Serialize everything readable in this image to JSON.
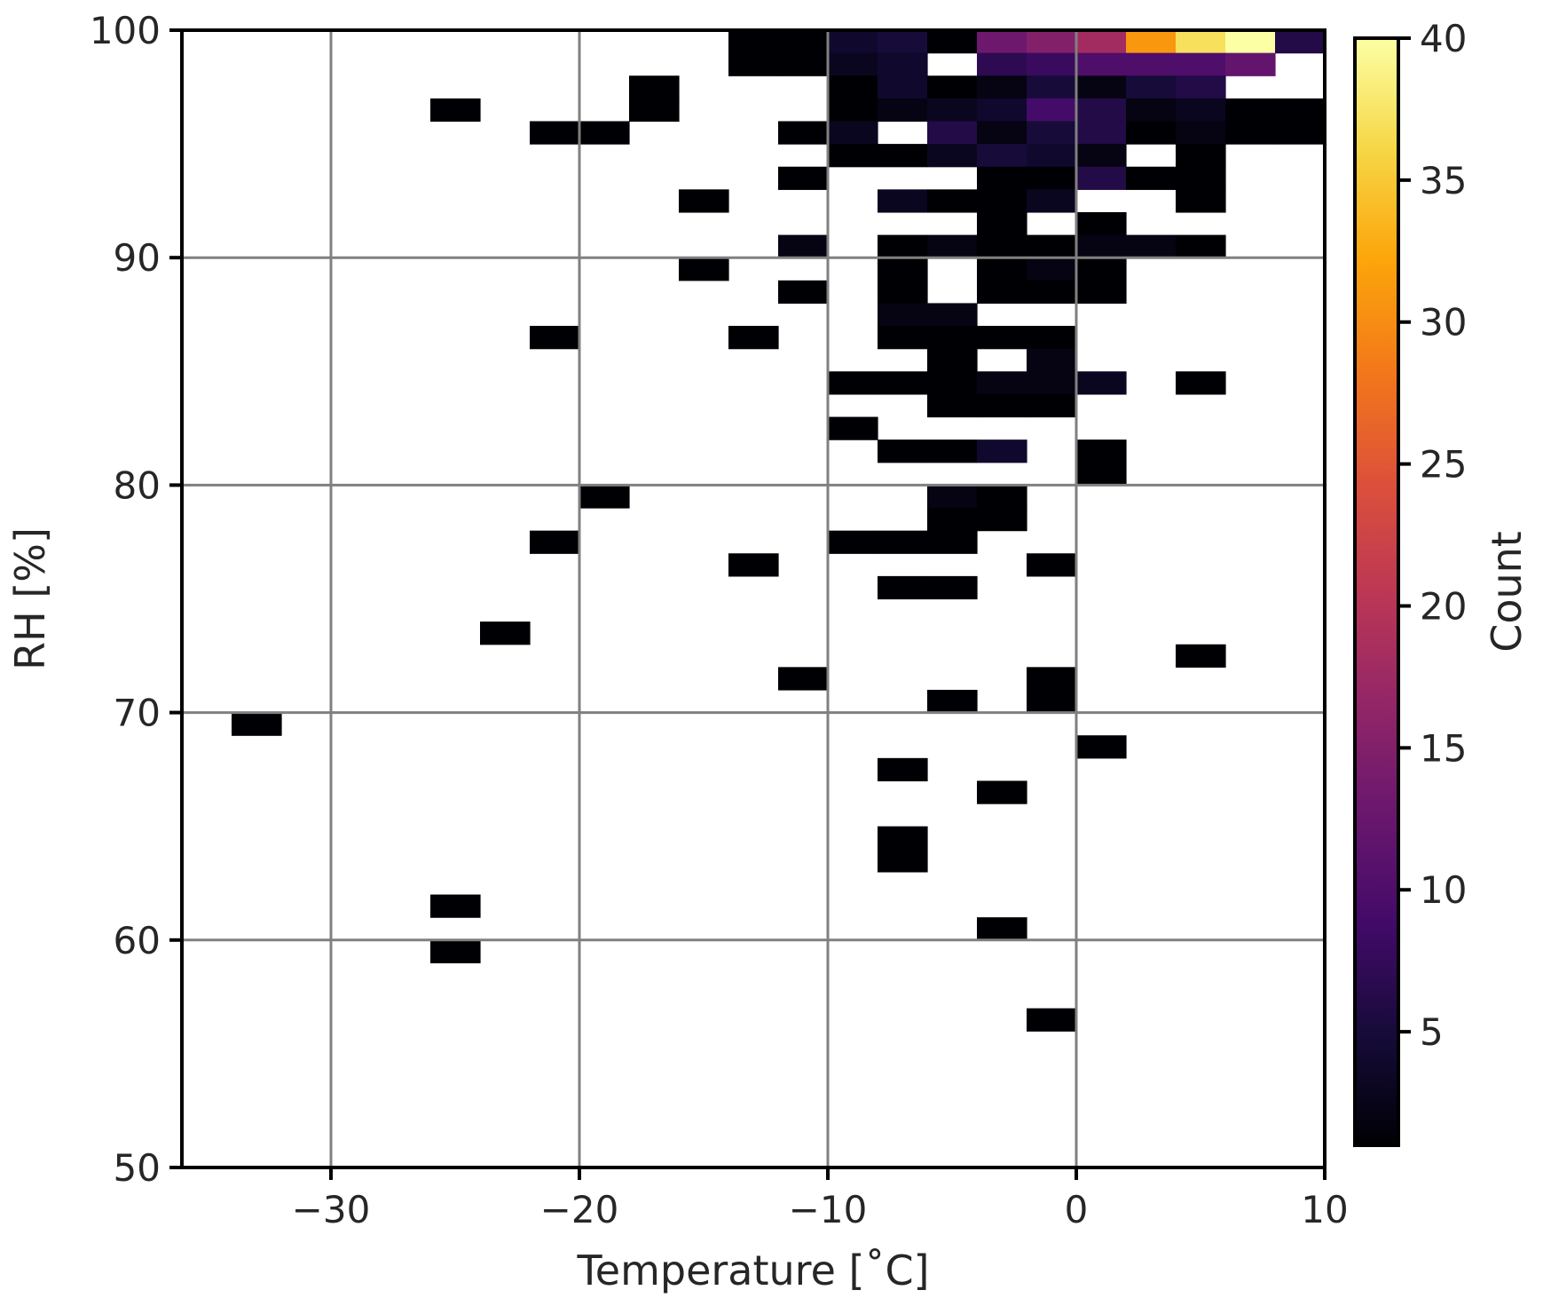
{
  "chart_data": {
    "type": "heatmap",
    "xlabel": "Temperature [˚C]",
    "ylabel": "RH [%]",
    "colorbar_label": "Count",
    "colormap": "inferno",
    "xlim": [
      -36,
      10
    ],
    "ylim": [
      50,
      100
    ],
    "x_bin_width": 2,
    "y_bin_width": 1,
    "xticks": [
      -30,
      -20,
      -10,
      0,
      10
    ],
    "xtick_labels": [
      "−30",
      "−20",
      "−10",
      "0",
      "10"
    ],
    "yticks": [
      50,
      60,
      70,
      80,
      90,
      100
    ],
    "ytick_labels": [
      "50",
      "60",
      "70",
      "80",
      "90",
      "100"
    ],
    "color_range": [
      1,
      40
    ],
    "colorbar_ticks": [
      5,
      10,
      15,
      20,
      25,
      30,
      35,
      40
    ],
    "colorbar_tick_labels": [
      "5",
      "10",
      "15",
      "20",
      "25",
      "30",
      "35",
      "40"
    ],
    "grid": true,
    "cells": [
      [
        -14,
        99,
        1
      ],
      [
        -12,
        99,
        1
      ],
      [
        -10,
        99,
        4
      ],
      [
        -8,
        99,
        5
      ],
      [
        -6,
        99,
        1
      ],
      [
        -4,
        99,
        13
      ],
      [
        -2,
        99,
        15
      ],
      [
        0,
        99,
        18
      ],
      [
        2,
        99,
        31
      ],
      [
        4,
        99,
        37
      ],
      [
        6,
        99,
        40
      ],
      [
        8,
        99,
        6
      ],
      [
        -14,
        98,
        1
      ],
      [
        -12,
        98,
        1
      ],
      [
        -10,
        98,
        3
      ],
      [
        -8,
        98,
        4
      ],
      [
        -4,
        98,
        7
      ],
      [
        -2,
        98,
        8
      ],
      [
        0,
        98,
        10
      ],
      [
        2,
        98,
        10
      ],
      [
        4,
        98,
        10
      ],
      [
        6,
        98,
        12
      ],
      [
        -18,
        97,
        1
      ],
      [
        -10,
        97,
        1
      ],
      [
        -8,
        97,
        4
      ],
      [
        -6,
        97,
        1
      ],
      [
        -4,
        97,
        2
      ],
      [
        -2,
        97,
        5
      ],
      [
        0,
        97,
        2
      ],
      [
        2,
        97,
        5
      ],
      [
        4,
        97,
        6
      ],
      [
        -26,
        96,
        1
      ],
      [
        -18,
        96,
        1
      ],
      [
        -10,
        96,
        1
      ],
      [
        -8,
        96,
        2
      ],
      [
        -6,
        96,
        3
      ],
      [
        -4,
        96,
        4
      ],
      [
        -2,
        96,
        9
      ],
      [
        0,
        96,
        6
      ],
      [
        2,
        96,
        2
      ],
      [
        4,
        96,
        3
      ],
      [
        6,
        96,
        1
      ],
      [
        8,
        96,
        1
      ],
      [
        -22,
        95,
        1
      ],
      [
        -20,
        95,
        1
      ],
      [
        -12,
        95,
        1
      ],
      [
        -10,
        95,
        3
      ],
      [
        -6,
        95,
        6
      ],
      [
        -4,
        95,
        2
      ],
      [
        -2,
        95,
        5
      ],
      [
        0,
        95,
        6
      ],
      [
        2,
        95,
        1
      ],
      [
        4,
        95,
        2
      ],
      [
        6,
        95,
        1
      ],
      [
        8,
        95,
        1
      ],
      [
        -10,
        94,
        1
      ],
      [
        -8,
        94,
        1
      ],
      [
        -6,
        94,
        3
      ],
      [
        -4,
        94,
        5
      ],
      [
        -2,
        94,
        4
      ],
      [
        0,
        94,
        2
      ],
      [
        4,
        94,
        1
      ],
      [
        -12,
        93,
        1
      ],
      [
        -4,
        93,
        1
      ],
      [
        -2,
        93,
        1
      ],
      [
        0,
        93,
        6
      ],
      [
        2,
        93,
        1
      ],
      [
        4,
        93,
        1
      ],
      [
        -16,
        92,
        1
      ],
      [
        -8,
        92,
        3
      ],
      [
        -6,
        92,
        1
      ],
      [
        -4,
        92,
        1
      ],
      [
        -2,
        92,
        3
      ],
      [
        4,
        92,
        1
      ],
      [
        -4,
        91,
        1
      ],
      [
        0,
        91,
        1
      ],
      [
        -12,
        90,
        2
      ],
      [
        -8,
        90,
        1
      ],
      [
        -6,
        90,
        2
      ],
      [
        -4,
        90,
        1
      ],
      [
        -2,
        90,
        1
      ],
      [
        0,
        90,
        2
      ],
      [
        2,
        90,
        2
      ],
      [
        4,
        90,
        1
      ],
      [
        -16,
        89,
        1
      ],
      [
        -8,
        89,
        1
      ],
      [
        -4,
        89,
        1
      ],
      [
        -2,
        89,
        2
      ],
      [
        0,
        89,
        1
      ],
      [
        -12,
        88,
        1
      ],
      [
        -8,
        88,
        1
      ],
      [
        -4,
        88,
        1
      ],
      [
        -2,
        88,
        1
      ],
      [
        0,
        88,
        1
      ],
      [
        -8,
        87,
        2
      ],
      [
        -6,
        87,
        2
      ],
      [
        -22,
        86,
        1
      ],
      [
        -14,
        86,
        1
      ],
      [
        -8,
        86,
        1
      ],
      [
        -6,
        86,
        1
      ],
      [
        -4,
        86,
        1
      ],
      [
        -2,
        86,
        1
      ],
      [
        -6,
        85,
        1
      ],
      [
        -2,
        85,
        2
      ],
      [
        -10,
        84,
        1
      ],
      [
        -8,
        84,
        1
      ],
      [
        -6,
        84,
        1
      ],
      [
        -4,
        84,
        2
      ],
      [
        -2,
        84,
        2
      ],
      [
        0,
        84,
        3
      ],
      [
        4,
        84,
        1
      ],
      [
        -6,
        83,
        1
      ],
      [
        -4,
        83,
        1
      ],
      [
        -2,
        83,
        1
      ],
      [
        -10,
        82,
        1
      ],
      [
        -8,
        81,
        1
      ],
      [
        -6,
        81,
        1
      ],
      [
        -4,
        81,
        4
      ],
      [
        0,
        81,
        1
      ],
      [
        0,
        80,
        1
      ],
      [
        -20,
        79,
        1
      ],
      [
        -6,
        79,
        2
      ],
      [
        -4,
        79,
        1
      ],
      [
        -6,
        78,
        1
      ],
      [
        -4,
        78,
        1
      ],
      [
        -22,
        77,
        1
      ],
      [
        -10,
        77,
        1
      ],
      [
        -8,
        77,
        1
      ],
      [
        -6,
        77,
        1
      ],
      [
        -14,
        76,
        1
      ],
      [
        -2,
        76,
        1
      ],
      [
        -8,
        75,
        1
      ],
      [
        -6,
        75,
        1
      ],
      [
        -24,
        73,
        1
      ],
      [
        4,
        72,
        1
      ],
      [
        -12,
        71,
        1
      ],
      [
        -2,
        71,
        1
      ],
      [
        -6,
        70,
        1
      ],
      [
        -2,
        70,
        1
      ],
      [
        -34,
        69,
        1
      ],
      [
        0,
        68,
        1
      ],
      [
        -8,
        67,
        1
      ],
      [
        -4,
        66,
        1
      ],
      [
        -8,
        64,
        1
      ],
      [
        -8,
        63,
        1
      ],
      [
        -26,
        61,
        1
      ],
      [
        -4,
        60,
        1
      ],
      [
        -26,
        59,
        1
      ],
      [
        -2,
        56,
        1
      ]
    ]
  }
}
